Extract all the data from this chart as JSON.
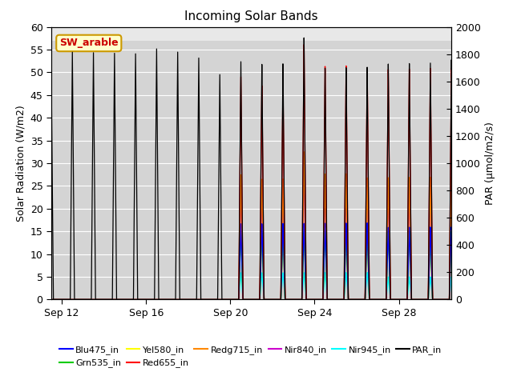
{
  "title": "Incoming Solar Bands",
  "ylabel_left": "Solar Radiation (W/m2)",
  "ylabel_right": "PAR (μmol/m2/s)",
  "annotation_text": "SW_arable",
  "annotation_bg": "#ffffcc",
  "annotation_edge": "#cc9900",
  "annotation_text_color": "#cc0000",
  "ylim_left": [
    0,
    60
  ],
  "ylim_right": [
    0,
    2000
  ],
  "bg_color": "#d8d8d8",
  "bg_upper_color": "#e8e8e8",
  "series_colors": {
    "Blu475_in": "#0000ff",
    "Grn535_in": "#00cc00",
    "Yel580_in": "#ffff00",
    "Red655_in": "#ff0000",
    "Redg715_in": "#ff8800",
    "Nir840_in": "#cc00cc",
    "Nir945_in": "#00ffff",
    "PAR_in": "#000000"
  },
  "xtick_labels": [
    "Sep 12",
    "Sep 16",
    "Sep 20",
    "Sep 24",
    "Sep 28"
  ],
  "legend_order": [
    "Blu475_in",
    "Grn535_in",
    "Yel580_in",
    "Red655_in",
    "Redg715_in",
    "Nir840_in",
    "Nir945_in",
    "PAR_in"
  ],
  "n_days": 20,
  "par_peaks": [
    1640,
    1820,
    1820,
    1820,
    1820,
    1860,
    1840,
    1800,
    1680,
    1780,
    1760,
    1760,
    1950,
    1720,
    1720,
    1720,
    1740,
    1740,
    1740,
    1760
  ],
  "red_peaks": [
    0,
    0,
    0,
    0,
    0,
    0,
    0,
    0,
    0,
    50,
    48,
    48,
    57,
    52,
    52,
    51,
    51,
    51,
    51,
    51
  ],
  "redg_peaks": [
    0,
    0,
    0,
    0,
    0,
    0,
    0,
    0,
    0,
    28,
    27,
    27,
    33,
    28,
    28,
    27,
    27,
    27,
    27,
    27
  ],
  "nir840_peaks": [
    0,
    0,
    0,
    0,
    0,
    0,
    0,
    0,
    0,
    26,
    25,
    25,
    31,
    26,
    26,
    26,
    25,
    25,
    25,
    25
  ],
  "blu_peaks": [
    0,
    0,
    0,
    0,
    0,
    0,
    0,
    0,
    0,
    17,
    17,
    17,
    17,
    17,
    17,
    17,
    16,
    16,
    16,
    16
  ],
  "grn_peaks": [
    0,
    0,
    0,
    0,
    0,
    0,
    0,
    0,
    0,
    15,
    15,
    15,
    15,
    15,
    15,
    15,
    15,
    15,
    15,
    15
  ],
  "yel_peaks": [
    0,
    0,
    0,
    0,
    0,
    0,
    0,
    0,
    0,
    16,
    16,
    16,
    16,
    16,
    16,
    16,
    16,
    16,
    16,
    16
  ],
  "nir945_peaks": [
    0,
    0,
    0,
    0,
    0,
    0,
    0,
    0,
    0,
    6,
    6,
    6,
    6,
    6,
    6,
    6,
    5,
    5,
    5,
    5
  ]
}
